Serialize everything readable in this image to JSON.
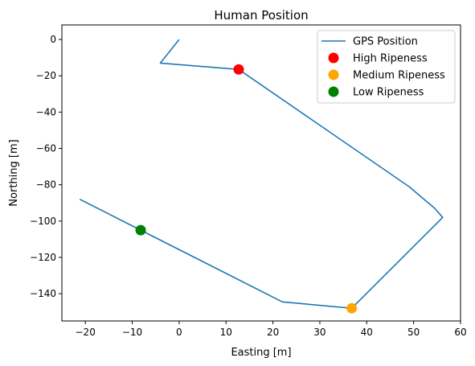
{
  "chart_data": {
    "type": "line",
    "title": "Human Position",
    "xlabel": "Easting [m]",
    "ylabel": "Northing [m]",
    "xlim": [
      -25,
      60
    ],
    "ylim": [
      -155,
      8
    ],
    "xticks": [
      -20,
      -10,
      0,
      10,
      20,
      30,
      40,
      50,
      60
    ],
    "yticks": [
      0,
      -20,
      -40,
      -60,
      -80,
      -100,
      -120,
      -140
    ],
    "grid": false,
    "legend_position": "top-right",
    "series": [
      {
        "name": "GPS Position",
        "kind": "line",
        "color": "#1f77b4",
        "x": [
          0,
          -4,
          12.7,
          49,
          54.5,
          56.2,
          36.8,
          22,
          -8.2,
          -21.2
        ],
        "y": [
          0,
          -13,
          -16.5,
          -81,
          -93,
          -98,
          -148,
          -144.5,
          -105,
          -88
        ]
      },
      {
        "name": "High Ripeness",
        "kind": "scatter",
        "color": "#ff0000",
        "x": [
          12.7
        ],
        "y": [
          -16.5
        ]
      },
      {
        "name": "Medium Ripeness",
        "kind": "scatter",
        "color": "#ffa500",
        "x": [
          36.8
        ],
        "y": [
          -148
        ]
      },
      {
        "name": "Low Ripeness",
        "kind": "scatter",
        "color": "#008000",
        "x": [
          -8.2
        ],
        "y": [
          -105
        ]
      }
    ]
  }
}
